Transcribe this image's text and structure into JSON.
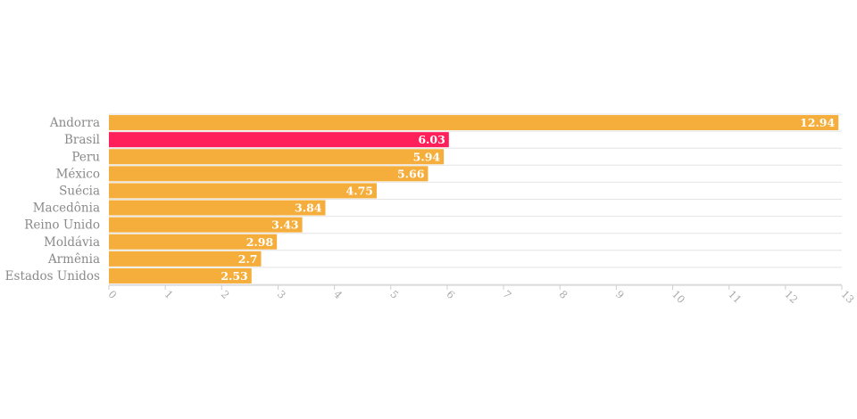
{
  "chart_data": {
    "type": "bar",
    "orientation": "horizontal",
    "categories": [
      "Andorra",
      "Brasil",
      "Peru",
      "México",
      "Suécia",
      "Macedônia",
      "Reino Unido",
      "Moldávia",
      "Armênia",
      "Estados Unidos"
    ],
    "values": [
      12.94,
      6.03,
      5.94,
      5.66,
      4.75,
      3.84,
      3.43,
      2.98,
      2.7,
      2.53
    ],
    "value_labels": [
      "12.94",
      "6.03",
      "5.94",
      "5.66",
      "4.75",
      "3.84",
      "3.43",
      "2.98",
      "2.7",
      "2.53"
    ],
    "highlight_category": "Brasil",
    "xlim": [
      0,
      13
    ],
    "x_ticks": [
      "0",
      "1",
      "2",
      "3",
      "4",
      "5",
      "6",
      "7",
      "8",
      "9",
      "10",
      "11",
      "12",
      "13"
    ],
    "title": "",
    "xlabel": "",
    "ylabel": "",
    "grid": true,
    "legend": "none"
  },
  "colors": {
    "bar": "#f5ae3b",
    "highlight": "#ff1f5a",
    "value_text": "#ffffff"
  }
}
